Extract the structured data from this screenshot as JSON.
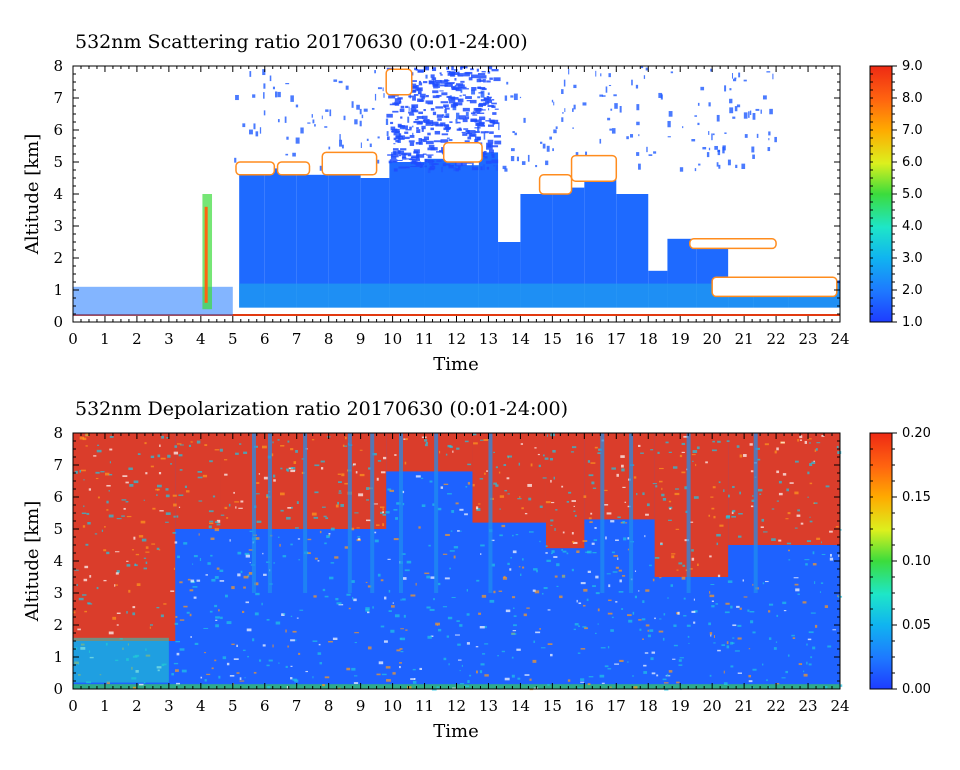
{
  "chart_data": [
    {
      "type": "heatmap",
      "title": "532nm Scattering ratio  20170630 (0:01-24:00)",
      "xlabel": "Time",
      "ylabel": "Altitude [km]",
      "xlim": [
        0,
        24
      ],
      "ylim": [
        0,
        8
      ],
      "x_ticks": [
        "0",
        "1",
        "2",
        "3",
        "4",
        "5",
        "6",
        "7",
        "8",
        "9",
        "10",
        "11",
        "12",
        "13",
        "14",
        "15",
        "16",
        "17",
        "18",
        "19",
        "20",
        "21",
        "22",
        "23",
        "24"
      ],
      "y_ticks": [
        "0",
        "1",
        "2",
        "3",
        "4",
        "5",
        "6",
        "7",
        "8"
      ],
      "colorbar": {
        "range": [
          1.0,
          9.0
        ],
        "ticks": [
          "1.0",
          "2.0",
          "3.0",
          "4.0",
          "5.0",
          "6.0",
          "7.0",
          "8.0",
          "9.0"
        ]
      }
    },
    {
      "type": "heatmap",
      "title": "532nm Depolarization ratio  20170630 (0:01-24:00)",
      "xlabel": "Time",
      "ylabel": "Altitude [km]",
      "xlim": [
        0,
        24
      ],
      "ylim": [
        0,
        8
      ],
      "x_ticks": [
        "0",
        "1",
        "2",
        "3",
        "4",
        "5",
        "6",
        "7",
        "8",
        "9",
        "10",
        "11",
        "12",
        "13",
        "14",
        "15",
        "16",
        "17",
        "18",
        "19",
        "20",
        "21",
        "22",
        "23",
        "24"
      ],
      "y_ticks": [
        "0",
        "1",
        "2",
        "3",
        "4",
        "5",
        "6",
        "7",
        "8"
      ],
      "colorbar": {
        "range": [
          0.0,
          0.2
        ],
        "ticks": [
          "0.00",
          "0.05",
          "0.10",
          "0.15",
          "0.20"
        ]
      }
    }
  ]
}
